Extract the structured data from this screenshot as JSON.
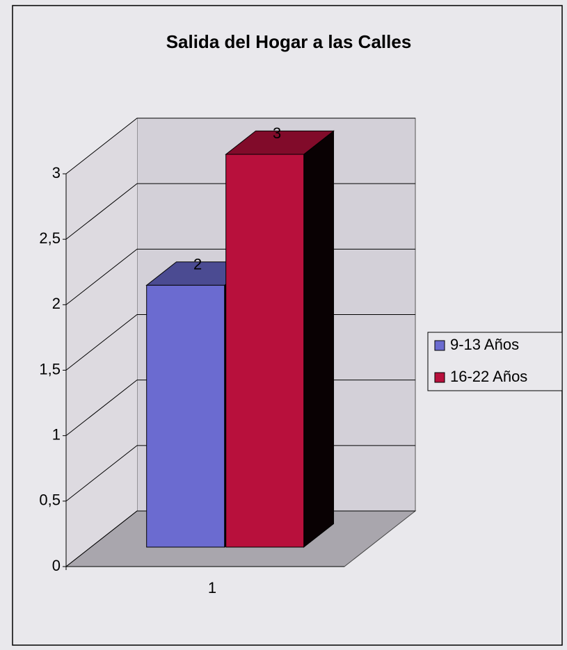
{
  "chart_data": {
    "type": "bar3d",
    "title": "Salida del Hogar a las Calles",
    "categories": [
      "1"
    ],
    "series": [
      {
        "name": "9-13 Años",
        "color": "#6b6bd0",
        "values": [
          2
        ]
      },
      {
        "name": "16-22 Años",
        "color": "#b8103c",
        "values": [
          3
        ]
      }
    ],
    "ylim": [
      0,
      3
    ],
    "yticks": [
      0,
      {
        "value": 0.5,
        "label": "0,5"
      },
      1,
      {
        "value": 1.5,
        "label": "1,5"
      },
      2,
      {
        "value": 2.5,
        "label": "2,5"
      },
      3
    ],
    "grid": true,
    "legend": "right"
  }
}
